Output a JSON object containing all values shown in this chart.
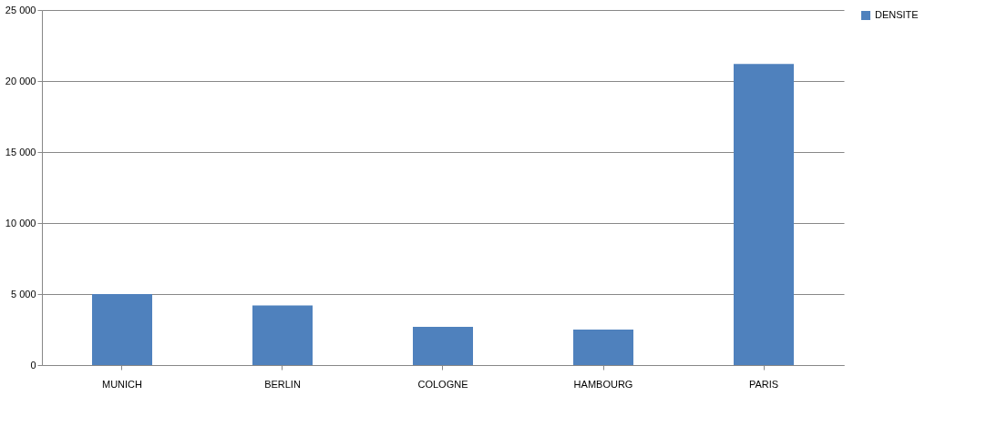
{
  "chart_data": {
    "type": "bar",
    "categories": [
      "MUNICH",
      "BERLIN",
      "COLOGNE",
      "HAMBOURG",
      "PARIS"
    ],
    "series": [
      {
        "name": "DENSITE",
        "color": "#4f81bd",
        "values": [
          5000,
          4200,
          2700,
          2500,
          21200
        ]
      }
    ],
    "ylim": [
      0,
      25000
    ],
    "yticks": [
      0,
      {
        "value": 5000,
        "label": "5 000"
      },
      {
        "value": 10000,
        "label": "10 000"
      },
      {
        "value": 15000,
        "label": "15 000"
      },
      {
        "value": 20000,
        "label": "20 000"
      },
      {
        "value": 25000,
        "label": "25 000"
      }
    ],
    "grid": "y",
    "legend": "right"
  }
}
